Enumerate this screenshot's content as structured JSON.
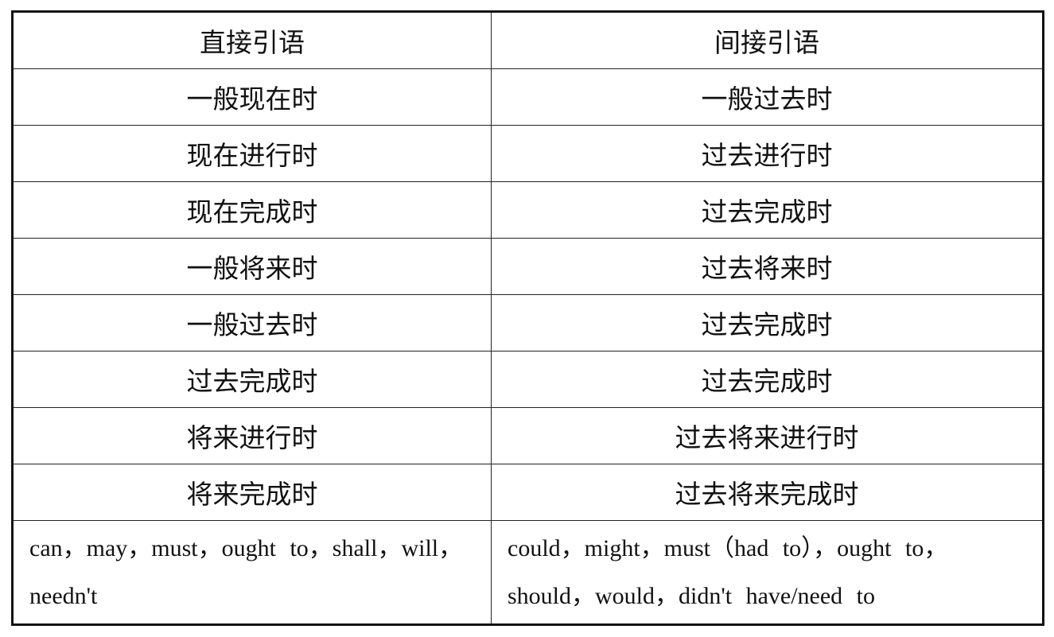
{
  "table": {
    "headers": [
      "直接引语",
      "间接引语"
    ],
    "rows": [
      [
        "一般现在时",
        "一般过去时"
      ],
      [
        "现在进行时",
        "过去进行时"
      ],
      [
        "现在完成时",
        "过去完成时"
      ],
      [
        "一般将来时",
        "过去将来时"
      ],
      [
        "一般过去时",
        "过去完成时"
      ],
      [
        "过去完成时",
        "过去完成时"
      ],
      [
        "将来进行时",
        "过去将来进行时"
      ],
      [
        "将来完成时",
        "过去将来完成时"
      ],
      [
        "can，may，must，ought to，shall，will，needn't",
        "could，might，must（had to），ought to，should，would，didn't have/need to"
      ]
    ]
  }
}
